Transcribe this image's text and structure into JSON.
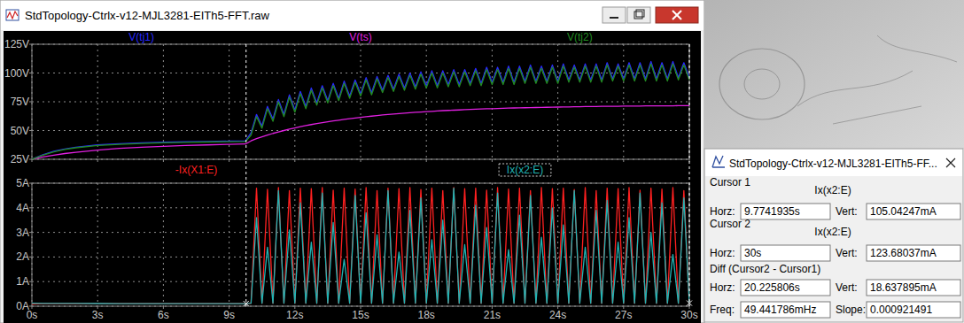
{
  "window": {
    "title": "StdTopology-Ctrlx-v12-MJL3281-EITh5-FFT.raw"
  },
  "chart_data": [
    {
      "type": "line",
      "legend": "top",
      "grid": true,
      "tick_labels": "y",
      "x": [
        0,
        0.5,
        1,
        1.5,
        2,
        3,
        4,
        5,
        6,
        7,
        8,
        9,
        9.75,
        10,
        10.25,
        10.5,
        10.75,
        11,
        11.25,
        11.5,
        11.75,
        12,
        12.25,
        12.5,
        12.75,
        13,
        13.25,
        13.5,
        13.75,
        14,
        14.25,
        14.5,
        14.75,
        15,
        15.25,
        15.5,
        15.75,
        16,
        16.25,
        16.5,
        16.75,
        17,
        17.25,
        17.5,
        17.75,
        18,
        18.25,
        18.5,
        18.75,
        19,
        19.25,
        19.5,
        19.75,
        20,
        20.25,
        20.5,
        20.75,
        21,
        21.25,
        21.5,
        21.75,
        22,
        22.25,
        22.5,
        22.75,
        23,
        23.25,
        23.5,
        23.75,
        24,
        24.25,
        24.5,
        24.75,
        25,
        25.25,
        25.5,
        25.75,
        26,
        26.25,
        26.5,
        26.75,
        27,
        27.25,
        27.5,
        27.75,
        28,
        28.25,
        28.5,
        28.75,
        29,
        29.25,
        29.5,
        29.75,
        30
      ],
      "xlim": [
        0,
        30
      ],
      "xticks": [
        0,
        3,
        6,
        9,
        12,
        15,
        18,
        21,
        24,
        27,
        30
      ],
      "ylim": [
        25,
        125
      ],
      "yticks": [
        {
          "value": 25,
          "label": "25V"
        },
        {
          "value": 50,
          "label": "50V"
        },
        {
          "value": 75,
          "label": "75V"
        },
        {
          "value": 100,
          "label": "100V"
        },
        {
          "value": 125,
          "label": "125V"
        }
      ],
      "series": [
        {
          "name": "V(tj1)",
          "color": "#2828ff",
          "values": [
            25,
            29,
            32,
            34,
            35.5,
            37.5,
            38.5,
            39.3,
            39.8,
            40.2,
            40.5,
            40.8,
            41,
            48,
            64,
            54,
            71,
            60,
            77,
            64,
            81,
            68,
            84,
            71,
            87,
            74,
            89,
            76,
            91,
            78,
            93,
            80,
            94,
            82,
            96,
            83,
            97,
            85,
            98,
            86,
            99,
            87,
            100,
            88,
            101,
            89,
            102,
            89,
            102,
            90,
            103,
            90,
            103,
            91,
            104,
            91,
            105,
            92,
            105,
            92,
            106,
            92,
            106,
            93,
            107,
            93,
            106,
            93,
            107,
            93,
            108,
            94,
            107,
            94,
            108,
            94,
            108,
            94,
            109,
            95,
            108,
            95,
            109,
            95,
            109,
            95,
            110,
            95,
            109,
            95,
            110,
            96,
            109,
            96
          ]
        },
        {
          "name": "V(ts)",
          "color": "#e020e0",
          "values": [
            25,
            27,
            28.5,
            30,
            31,
            33,
            34.5,
            35.5,
            36.3,
            37,
            37.5,
            38,
            38.3,
            41,
            43,
            44.5,
            46,
            47.5,
            48.8,
            50,
            51.2,
            52.3,
            53.3,
            54.3,
            55.2,
            56,
            56.8,
            57.6,
            58.3,
            59,
            59.7,
            60.3,
            60.9,
            61.5,
            62,
            62.5,
            63,
            63.5,
            63.9,
            64.3,
            64.7,
            65.1,
            65.5,
            65.8,
            66.1,
            66.4,
            66.7,
            67,
            67.3,
            67.5,
            67.7,
            67.9,
            68.1,
            68.3,
            68.5,
            68.7,
            68.9,
            69,
            69.2,
            69.3,
            69.5,
            69.6,
            69.7,
            69.8,
            69.9,
            70,
            70.1,
            70.2,
            70.3,
            70.4,
            70.5,
            70.5,
            70.6,
            70.7,
            70.8,
            70.8,
            70.9,
            71,
            71,
            71.1,
            71.1,
            71.2,
            71.2,
            71.3,
            71.3,
            71.4,
            71.4,
            71.4,
            71.5,
            71.5,
            71.5,
            71.6,
            71.6,
            71.6
          ]
        },
        {
          "name": "V(tj2)",
          "color": "#228b22",
          "values": [
            25,
            28.5,
            31.5,
            33.5,
            35,
            37,
            38,
            38.8,
            39.3,
            39.7,
            40,
            40.3,
            40.5,
            46,
            62,
            52,
            69,
            58,
            75,
            62,
            79,
            66,
            82,
            69,
            85,
            72,
            87,
            74,
            89,
            76,
            91,
            78,
            92,
            80,
            94,
            81,
            95,
            83,
            96,
            84,
            97,
            85,
            98,
            86,
            99,
            87,
            100,
            87,
            100,
            88,
            101,
            88,
            101,
            89,
            102,
            89,
            103,
            90,
            103,
            90,
            104,
            90,
            104,
            91,
            105,
            91,
            104,
            91,
            105,
            91,
            106,
            92,
            105,
            92,
            106,
            92,
            106,
            92,
            107,
            93,
            106,
            93,
            107,
            93,
            107,
            93,
            108,
            93,
            107,
            93,
            108,
            94,
            107,
            94
          ]
        }
      ]
    },
    {
      "type": "line",
      "legend": "top",
      "grid": true,
      "x": [
        0,
        0.5,
        1,
        1.5,
        2,
        3,
        4,
        5,
        6,
        7,
        8,
        9,
        9.75,
        10,
        10.25,
        10.5,
        10.75,
        11,
        11.25,
        11.5,
        11.75,
        12,
        12.25,
        12.5,
        12.75,
        13,
        13.25,
        13.5,
        13.75,
        14,
        14.25,
        14.5,
        14.75,
        15,
        15.25,
        15.5,
        15.75,
        16,
        16.25,
        16.5,
        16.75,
        17,
        17.25,
        17.5,
        17.75,
        18,
        18.25,
        18.5,
        18.75,
        19,
        19.25,
        19.5,
        19.75,
        20,
        20.25,
        20.5,
        20.75,
        21,
        21.25,
        21.5,
        21.75,
        22,
        22.25,
        22.5,
        22.75,
        23,
        23.25,
        23.5,
        23.75,
        24,
        24.25,
        24.5,
        24.75,
        25,
        25.25,
        25.5,
        25.75,
        26,
        26.25,
        26.5,
        26.75,
        27,
        27.25,
        27.5,
        27.75,
        28,
        28.25,
        28.5,
        28.75,
        29,
        29.25,
        29.5,
        29.75,
        30
      ],
      "xlim": [
        0,
        30
      ],
      "xticks": [
        {
          "value": 0,
          "label": "0s"
        },
        {
          "value": 3,
          "label": "3s"
        },
        {
          "value": 6,
          "label": "6s"
        },
        {
          "value": 9,
          "label": "9s"
        },
        {
          "value": 12,
          "label": "12s"
        },
        {
          "value": 15,
          "label": "15s"
        },
        {
          "value": 18,
          "label": "18s"
        },
        {
          "value": 21,
          "label": "21s"
        },
        {
          "value": 24,
          "label": "24s"
        },
        {
          "value": 27,
          "label": "27s"
        },
        {
          "value": 30,
          "label": "30s"
        }
      ],
      "ylim": [
        0,
        5
      ],
      "yticks": [
        {
          "value": 0,
          "label": "0A"
        },
        {
          "value": 1,
          "label": "1A"
        },
        {
          "value": 2,
          "label": "2A"
        },
        {
          "value": 3,
          "label": "3A"
        },
        {
          "value": 4,
          "label": "4A"
        },
        {
          "value": 5,
          "label": "5A"
        }
      ],
      "series": [
        {
          "name": "-Ix(X1:E)",
          "color": "#ff2020",
          "values": [
            0.09,
            0.1,
            0.1,
            0.1,
            0.1,
            0.1,
            0.1,
            0.1,
            0.1,
            0.1,
            0.1,
            0.1,
            0.1,
            0.12,
            4.8,
            0.12,
            4.75,
            0.12,
            4.82,
            0.12,
            4.7,
            0.12,
            4.8,
            0.12,
            4.78,
            0.12,
            4.82,
            0.12,
            4.72,
            0.12,
            4.8,
            0.12,
            4.76,
            0.12,
            4.82,
            0.12,
            4.7,
            0.12,
            4.8,
            0.12,
            4.78,
            0.12,
            4.82,
            0.12,
            4.74,
            0.12,
            4.8,
            0.12,
            4.7,
            0.12,
            4.82,
            0.12,
            4.78,
            0.12,
            4.8,
            0.12,
            4.72,
            0.12,
            4.82,
            0.12,
            4.76,
            0.12,
            4.8,
            0.12,
            4.7,
            0.12,
            4.82,
            0.12,
            4.78,
            0.12,
            4.8,
            0.12,
            4.74,
            0.12,
            4.82,
            0.12,
            4.7,
            0.12,
            4.8,
            0.12,
            4.78,
            0.12,
            4.82,
            0.12,
            4.72,
            0.12,
            4.8,
            0.12,
            4.76,
            0.12,
            4.82,
            0.12,
            4.7,
            0.12
          ]
        },
        {
          "name": "Ix(x2:E)",
          "color": "#20b4b4",
          "values": [
            0.12,
            0.115,
            0.112,
            0.11,
            0.109,
            0.108,
            0.107,
            0.106,
            0.106,
            0.105,
            0.105,
            0.105,
            0.105,
            0.12,
            3.6,
            0.12,
            2.4,
            0.12,
            4.7,
            0.12,
            3.1,
            0.12,
            4.2,
            0.12,
            2.6,
            0.12,
            4.6,
            0.12,
            3.4,
            0.12,
            1.9,
            0.12,
            4.5,
            0.12,
            3.8,
            0.12,
            2.9,
            0.12,
            4.7,
            0.12,
            2.2,
            0.12,
            3.9,
            0.12,
            4.4,
            0.12,
            2.7,
            0.12,
            3.5,
            0.12,
            4.8,
            0.12,
            2.5,
            0.12,
            4.1,
            0.12,
            3.2,
            0.12,
            4.6,
            0.12,
            2.3,
            0.12,
            3.7,
            0.12,
            4.5,
            0.12,
            2.8,
            0.12,
            4.0,
            0.12,
            3.3,
            0.12,
            4.7,
            0.12,
            2.4,
            0.12,
            3.9,
            0.12,
            4.3,
            0.12,
            2.6,
            0.12,
            3.6,
            0.12,
            4.6,
            0.12,
            3.0,
            0.12,
            4.2,
            0.12,
            2.1,
            0.12,
            4.4,
            0.124
          ]
        }
      ]
    }
  ],
  "cursor_panel": {
    "title": "StdTopology-Ctrlx-v12-MJL3281-EITh5-FF...",
    "field_labels": {
      "horz": "Horz:",
      "vert": "Vert:",
      "freq": "Freq:",
      "slope": "Slope:"
    },
    "cursors": [
      {
        "label": "Cursor 1",
        "trace": "Ix(x2:E)",
        "horz": {
          "value": 9.7741935,
          "label": "9.7741935s"
        },
        "vert": {
          "value": 0.10504247,
          "label": "105.04247mA"
        }
      },
      {
        "label": "Cursor 2",
        "trace": "Ix(x2:E)",
        "horz": {
          "value": 30,
          "label": "30s"
        },
        "vert": {
          "value": 0.12368037,
          "label": "123.68037mA"
        }
      }
    ],
    "diff": {
      "label": "Diff (Cursor2 - Cursor1)",
      "horz": {
        "value": 20.225806,
        "label": "20.225806s"
      },
      "vert": {
        "value": 0.018637895,
        "label": "18.637895mA"
      },
      "freq": {
        "value": 0.049441786,
        "label": "49.441786mHz"
      },
      "slope": {
        "value": 0.000921491,
        "label": "0.000921491"
      }
    }
  }
}
